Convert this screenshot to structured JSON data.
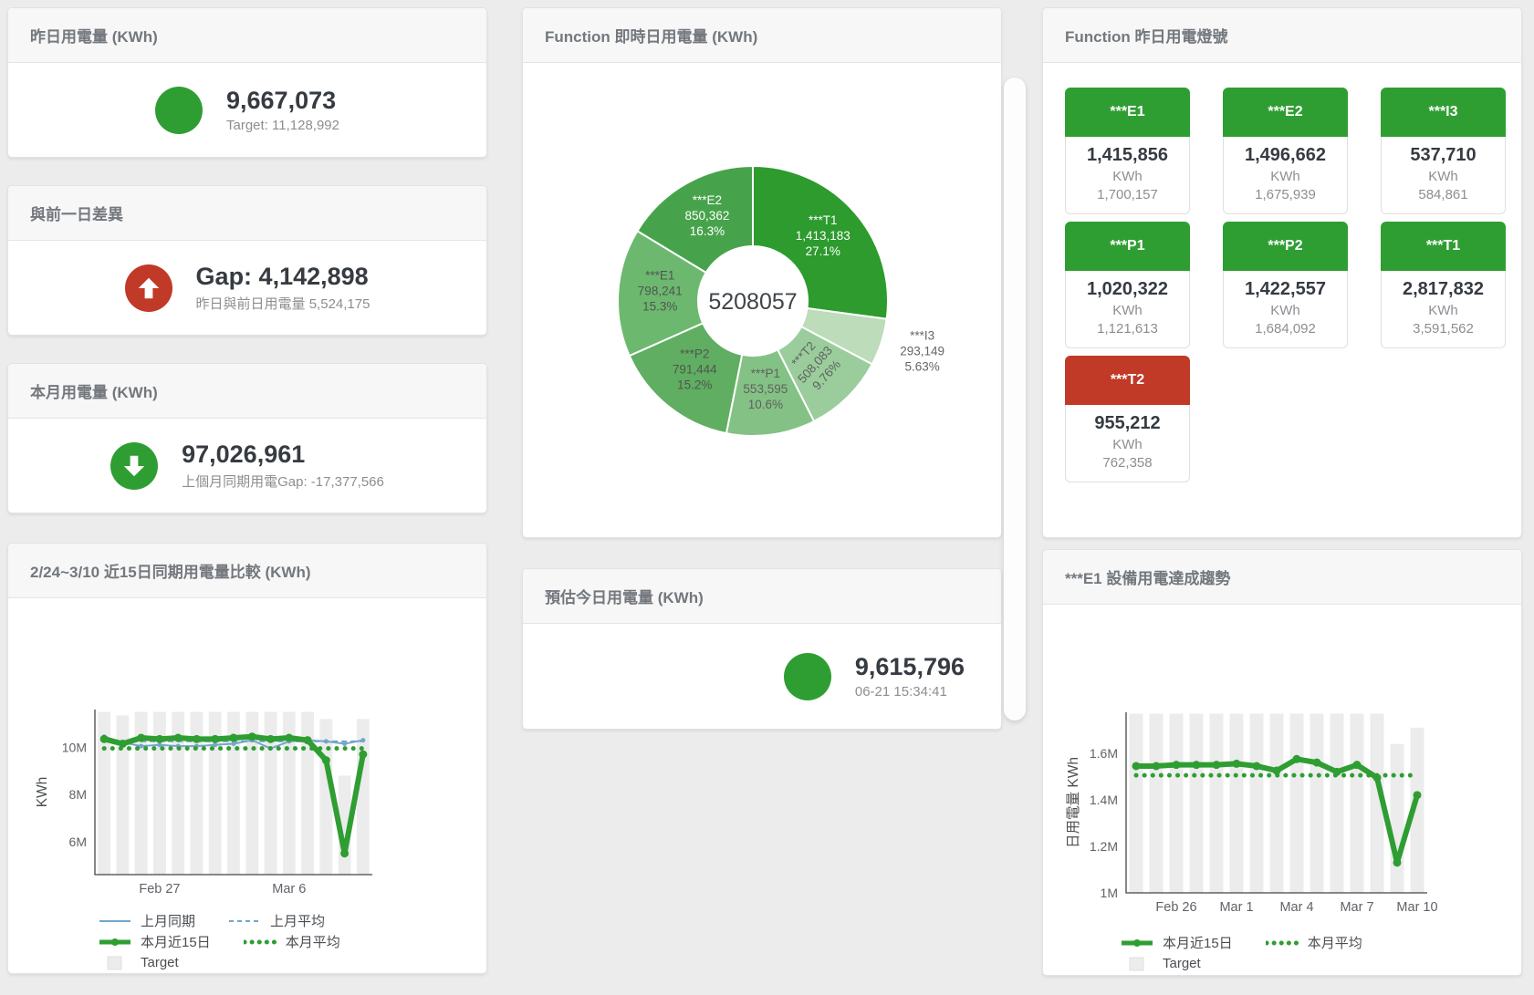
{
  "colors": {
    "green": "#2f9e32",
    "red": "#c13927",
    "bar_gray": "#ececec",
    "blue_line": "#71a7cb",
    "header_bg": "#f7f7f8",
    "title_gray": "#73787d",
    "value_dark": "#363b42",
    "sub_gray": "#8b8e92",
    "axis": "#444444",
    "tick_gray": "#5f6368"
  },
  "cards": {
    "yesterday": {
      "title": "昨日用電量 (KWh)",
      "value": "9,667,073",
      "subtext": "Target: 11,128,992",
      "indicator": "green-circle"
    },
    "day_gap": {
      "title": "與前一日差異",
      "value": "Gap: 4,142,898",
      "subtext": "昨日與前日用電量 5,524,175",
      "indicator": "red-up-arrow"
    },
    "month": {
      "title": "本月用電量 (KWh)",
      "value": "97,026,961",
      "subtext": "上個月同期用電Gap: -17,377,566",
      "indicator": "green-down-arrow"
    },
    "estimate": {
      "title": "預估今日用電量 (KWh)",
      "value": "9,615,796",
      "subtext": "06-21 15:34:41",
      "indicator": "green-circle"
    },
    "realtime": {
      "title": "Function 即時日用電量 (KWh)"
    },
    "lamp": {
      "title": "Function 昨日用電燈號"
    },
    "compare": {
      "title": "2/24~3/10 近15日同期用電量比較 (KWh)"
    },
    "e1_trend": {
      "title": "***E1 設備用電達成趨勢"
    }
  },
  "lamp_tiles": [
    {
      "label": "***E1",
      "value": "1,415,856",
      "unit": "KWh",
      "target": "1,700,157",
      "status": "green"
    },
    {
      "label": "***E2",
      "value": "1,496,662",
      "unit": "KWh",
      "target": "1,675,939",
      "status": "green"
    },
    {
      "label": "***I3",
      "value": "537,710",
      "unit": "KWh",
      "target": "584,861",
      "status": "green"
    },
    {
      "label": "***P1",
      "value": "1,020,322",
      "unit": "KWh",
      "target": "1,121,613",
      "status": "green"
    },
    {
      "label": "***P2",
      "value": "1,422,557",
      "unit": "KWh",
      "target": "1,684,092",
      "status": "green"
    },
    {
      "label": "***T1",
      "value": "2,817,832",
      "unit": "KWh",
      "target": "3,591,562",
      "status": "green"
    },
    {
      "label": "***T2",
      "value": "955,212",
      "unit": "KWh",
      "target": "762,358",
      "status": "red"
    }
  ],
  "chart_data": [
    {
      "type": "pie",
      "title": "Function 即時日用電量 (KWh)",
      "center_total": "5208057",
      "start_angle_deg": -90,
      "clockwise": true,
      "slices": [
        {
          "name": "***T1",
          "value": 1413183,
          "value_label": "1,413,183",
          "pct_label": "27.1%",
          "color": "#2d9b2d",
          "label_color": "#ffffff"
        },
        {
          "name": "***I3",
          "value": 293149,
          "value_label": "293,149",
          "pct_label": "5.63%",
          "color": "#bcdcba",
          "label_color": "#666666",
          "outside": true
        },
        {
          "name": "***T2",
          "value": 508083,
          "value_label": "508,083",
          "pct_label": "9.76%",
          "color": "#9bcd9c",
          "label_color": "#5d625d",
          "rotate": -48
        },
        {
          "name": "***P1",
          "value": 553595,
          "value_label": "553,595",
          "pct_label": "10.6%",
          "color": "#84c185",
          "label_color": "#5d625d"
        },
        {
          "name": "***P2",
          "value": 791444,
          "value_label": "791,444",
          "pct_label": "15.2%",
          "color": "#60ae62",
          "label_color": "#505550"
        },
        {
          "name": "***E1",
          "value": 798241,
          "value_label": "798,241",
          "pct_label": "15.3%",
          "color": "#6db86f",
          "label_color": "#505550"
        },
        {
          "name": "***E2",
          "value": 850362,
          "value_label": "850,362",
          "pct_label": "16.3%",
          "color": "#47a34b",
          "label_color": "#ffffff"
        }
      ]
    },
    {
      "type": "bar+line",
      "title": "2/24~3/10 近15日同期用電量比較 (KWh)",
      "ylabel": "KWh",
      "categories": [
        "Feb 24",
        "Feb 25",
        "Feb 26",
        "Feb 27",
        "Feb 28",
        "Mar 1",
        "Mar 2",
        "Mar 3",
        "Mar 4",
        "Mar 5",
        "Mar 6",
        "Mar 7",
        "Mar 8",
        "Mar 9",
        "Mar 10"
      ],
      "x_tick_indices": [
        3,
        10
      ],
      "ylim": [
        4600000,
        11600000
      ],
      "yticks": [
        {
          "value": 6000000,
          "label": "6M"
        },
        {
          "value": 8000000,
          "label": "8M"
        },
        {
          "value": 10000000,
          "label": "10M"
        }
      ],
      "series": [
        {
          "name": "Target",
          "type": "bar",
          "color": "#ececec",
          "values": [
            11500000,
            11350000,
            11500000,
            11500000,
            11500000,
            11500000,
            11500000,
            11500000,
            11500000,
            11500000,
            11500000,
            11500000,
            11200000,
            8800000,
            11200000
          ]
        },
        {
          "name": "上月同期",
          "type": "line",
          "dash": "solid",
          "width": 2,
          "markers": true,
          "color": "#71a7cb",
          "values": [
            10450000,
            10200000,
            10050000,
            10100000,
            10050000,
            10050000,
            10100000,
            10150000,
            10300000,
            9950000,
            10250000,
            10300000,
            10250000,
            10150000,
            10300000
          ]
        },
        {
          "name": "上月平均",
          "type": "line",
          "dash": "dashed",
          "width": 2,
          "color": "#71a7cb",
          "constant": 10250000
        },
        {
          "name": "本月近15日",
          "type": "line",
          "dash": "solid",
          "width": 6,
          "markers": true,
          "color": "#2f9e32",
          "values": [
            10350000,
            10150000,
            10400000,
            10350000,
            10400000,
            10350000,
            10350000,
            10400000,
            10450000,
            10350000,
            10400000,
            10300000,
            9450000,
            5500000,
            9700000
          ]
        },
        {
          "name": "本月平均",
          "type": "line",
          "dash": "dotted",
          "width": 5,
          "color": "#2f9e32",
          "constant": 9950000
        }
      ],
      "legend_rows": [
        [
          "上月同期",
          "上月平均"
        ],
        [
          "本月近15日",
          "本月平均"
        ],
        [
          "Target"
        ]
      ]
    },
    {
      "type": "bar+line",
      "title": "***E1 設備用電達成趨勢",
      "ylabel": "日用電量 KWh",
      "categories": [
        "Feb 24",
        "Feb 25",
        "Feb 26",
        "Feb 27",
        "Feb 28",
        "Mar 1",
        "Mar 2",
        "Mar 3",
        "Mar 4",
        "Mar 5",
        "Mar 6",
        "Mar 7",
        "Mar 8",
        "Mar 9",
        "Mar 10"
      ],
      "x_tick_indices": [
        2,
        5,
        8,
        11,
        14
      ],
      "ylim": [
        1000000,
        1776000
      ],
      "yticks": [
        {
          "value": 1000000,
          "label": "1M"
        },
        {
          "value": 1200000,
          "label": "1.2M"
        },
        {
          "value": 1400000,
          "label": "1.4M"
        },
        {
          "value": 1600000,
          "label": "1.6M"
        }
      ],
      "series": [
        {
          "name": "Target",
          "type": "bar",
          "color": "#ececec",
          "values": [
            1770000,
            1770000,
            1770000,
            1770000,
            1770000,
            1770000,
            1770000,
            1770000,
            1770000,
            1770000,
            1770000,
            1770000,
            1770000,
            1640000,
            1710000
          ]
        },
        {
          "name": "本月近15日",
          "type": "line",
          "dash": "solid",
          "width": 6,
          "markers": true,
          "color": "#2f9e32",
          "values": [
            1545000,
            1545000,
            1550000,
            1550000,
            1550000,
            1555000,
            1545000,
            1525000,
            1575000,
            1560000,
            1520000,
            1550000,
            1495000,
            1130000,
            1420000
          ]
        },
        {
          "name": "本月平均",
          "type": "line",
          "dash": "dotted",
          "width": 5,
          "color": "#2f9e32",
          "constant": 1505000
        }
      ],
      "legend_rows": [
        [
          "本月近15日",
          "本月平均"
        ],
        [
          "Target"
        ]
      ]
    }
  ]
}
